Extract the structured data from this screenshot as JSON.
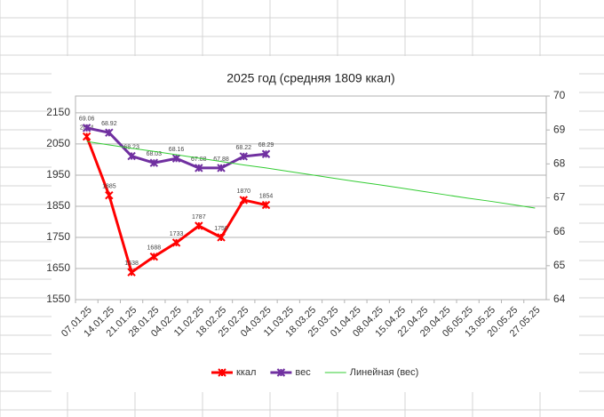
{
  "chart_data": {
    "type": "line",
    "title": "2025 год (средняя 1809 ккал)",
    "categories": [
      "07.01.25",
      "14.01.25",
      "21.01.25",
      "28.01.25",
      "04.02.25",
      "11.02.25",
      "18.02.25",
      "25.02.25",
      "04.03.25",
      "11.03.25",
      "18.03.25",
      "25.03.25",
      "01.04.25",
      "08.04.25",
      "15.04.25",
      "22.04.25",
      "29.04.25",
      "06.05.25",
      "13.05.25",
      "20.05.25",
      "27.05.25"
    ],
    "series": [
      {
        "name": "ккал",
        "color": "#ff0000",
        "axis": "y",
        "values": [
          2074,
          1885,
          1638,
          1688,
          1733,
          1787,
          1750,
          1870,
          1854,
          null,
          null,
          null,
          null,
          null,
          null,
          null,
          null,
          null,
          null,
          null,
          null
        ]
      },
      {
        "name": "вес",
        "color": "#7030a0",
        "axis": "y2",
        "values": [
          69.06,
          68.92,
          68.23,
          68.03,
          68.16,
          67.88,
          67.88,
          68.22,
          68.29,
          null,
          null,
          null,
          null,
          null,
          null,
          null,
          null,
          null,
          null,
          null,
          null
        ]
      },
      {
        "name": "Линейная (вес)",
        "color": "#33cc33",
        "axis": "y2",
        "values": [
          68.66,
          68.56,
          68.46,
          68.37,
          68.27,
          68.17,
          68.07,
          67.97,
          67.88,
          67.78,
          67.68,
          67.58,
          67.48,
          67.39,
          67.29,
          67.19,
          67.09,
          66.99,
          66.9,
          66.8,
          66.7
        ]
      }
    ],
    "ylim": [
      1550,
      2204
    ],
    "yticks": [
      1550,
      1650,
      1750,
      1850,
      1950,
      2050,
      2150
    ],
    "y2lim": [
      64,
      70
    ],
    "y2ticks": [
      64,
      65,
      66,
      67,
      68,
      69,
      70
    ],
    "grid": true,
    "legend": "bottom"
  }
}
